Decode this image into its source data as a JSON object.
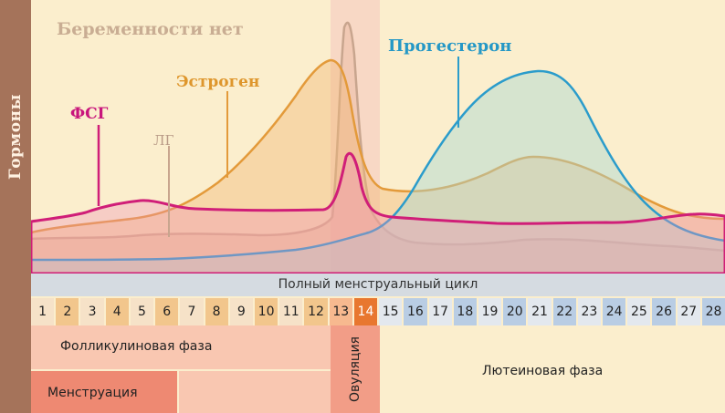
{
  "sidebar": {
    "label": "Гормоны"
  },
  "chart": {
    "title": "Беременности нет",
    "hormones": {
      "estrogen": "Эстроген",
      "progesterone": "Прогестерон",
      "fsh": "ФСГ",
      "lh": "ЛГ"
    },
    "colors": {
      "estrogen": "#e39a3a",
      "progesterone": "#2b9ccb",
      "fsh": "#d01e78",
      "lh": "#c8a58e"
    }
  },
  "cycle": {
    "label": "Полный менструальный цикл",
    "days": [
      {
        "n": "1",
        "c": "#f6e2c8"
      },
      {
        "n": "2",
        "c": "#f2c68c"
      },
      {
        "n": "3",
        "c": "#f6e2c8"
      },
      {
        "n": "4",
        "c": "#f2c68c"
      },
      {
        "n": "5",
        "c": "#f6e2c8"
      },
      {
        "n": "6",
        "c": "#f2c68c"
      },
      {
        "n": "7",
        "c": "#f6e2c8"
      },
      {
        "n": "8",
        "c": "#f2c68c"
      },
      {
        "n": "9",
        "c": "#f6e2c8"
      },
      {
        "n": "10",
        "c": "#f2c68c"
      },
      {
        "n": "11",
        "c": "#f6e2c8"
      },
      {
        "n": "12",
        "c": "#f2c68c"
      },
      {
        "n": "13",
        "c": "#f7b98f"
      },
      {
        "n": "14",
        "c": "#e8772f"
      },
      {
        "n": "15",
        "c": "#e3e8ee"
      },
      {
        "n": "16",
        "c": "#b9cde4"
      },
      {
        "n": "17",
        "c": "#e3e8ee"
      },
      {
        "n": "18",
        "c": "#b9cde4"
      },
      {
        "n": "19",
        "c": "#e3e8ee"
      },
      {
        "n": "20",
        "c": "#b9cde4"
      },
      {
        "n": "21",
        "c": "#e3e8ee"
      },
      {
        "n": "22",
        "c": "#b9cde4"
      },
      {
        "n": "23",
        "c": "#e3e8ee"
      },
      {
        "n": "24",
        "c": "#b9cde4"
      },
      {
        "n": "25",
        "c": "#e3e8ee"
      },
      {
        "n": "26",
        "c": "#b9cde4"
      },
      {
        "n": "27",
        "c": "#e3e8ee"
      },
      {
        "n": "28",
        "c": "#b9cde4"
      }
    ]
  },
  "phases": {
    "follicular": "Фолликулиновая фаза",
    "menstruation": "Менструация",
    "ovulation": "Овуляция",
    "luteal": "Лютеиновая фаза"
  }
}
